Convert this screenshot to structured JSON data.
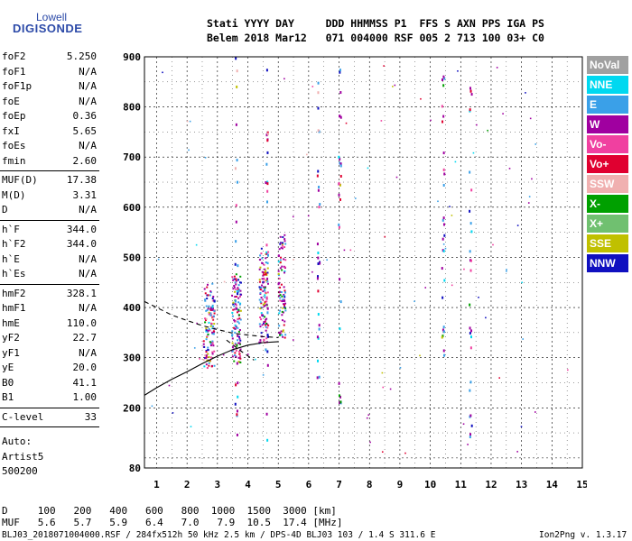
{
  "logo": {
    "top": "Lowell",
    "main": "DIGISONDE"
  },
  "header": {
    "labels": [
      "Stati",
      "YYYY",
      "DAY",
      "DDD",
      "HHMMSS",
      "P1",
      "FFS",
      "S",
      "AXN",
      "PPS",
      "IGA",
      "PS"
    ],
    "values": [
      "Belem",
      "2018",
      "Mar12",
      "071",
      "004000",
      "RSF",
      "005",
      "2",
      "713",
      "100",
      "03+",
      "C0"
    ]
  },
  "params": {
    "group1": [
      {
        "name": "foF2",
        "value": "5.250"
      },
      {
        "name": "foF1",
        "value": "N/A"
      },
      {
        "name": "foF1p",
        "value": "N/A"
      },
      {
        "name": "foE",
        "value": "N/A"
      },
      {
        "name": "foEp",
        "value": "0.36"
      },
      {
        "name": "fxI",
        "value": "5.65"
      },
      {
        "name": "foEs",
        "value": "N/A"
      },
      {
        "name": "fmin",
        "value": "2.60"
      }
    ],
    "group2": [
      {
        "name": "MUF(D)",
        "value": "17.38"
      },
      {
        "name": "M(D)",
        "value": "3.31"
      },
      {
        "name": "D",
        "value": "N/A"
      }
    ],
    "group3": [
      {
        "name": "h`F",
        "value": "344.0"
      },
      {
        "name": "h`F2",
        "value": "344.0"
      },
      {
        "name": "h`E",
        "value": "N/A"
      },
      {
        "name": "h`Es",
        "value": "N/A"
      }
    ],
    "group4": [
      {
        "name": "hmF2",
        "value": "328.1"
      },
      {
        "name": "hmF1",
        "value": "N/A"
      },
      {
        "name": "hmE",
        "value": "110.0"
      },
      {
        "name": "yF2",
        "value": "22.7"
      },
      {
        "name": "yF1",
        "value": "N/A"
      },
      {
        "name": "yE",
        "value": "20.0"
      },
      {
        "name": "B0",
        "value": "41.1"
      },
      {
        "name": "B1",
        "value": "1.00"
      }
    ],
    "group5": [
      {
        "name": "C-level",
        "value": "33"
      }
    ]
  },
  "auto": {
    "line1": "Auto:",
    "line2": "Artist5",
    "line3": "500200"
  },
  "legend": [
    {
      "label": "NoVal",
      "color": "#a0a0a0"
    },
    {
      "label": "NNE",
      "color": "#00d8f0"
    },
    {
      "label": "E",
      "color": "#3aa0e8"
    },
    {
      "label": "W",
      "color": "#a000a0"
    },
    {
      "label": "Vo-",
      "color": "#f040a0"
    },
    {
      "label": "Vo+",
      "color": "#e00030"
    },
    {
      "label": "SSW",
      "color": "#f0b0b0"
    },
    {
      "label": "X-",
      "color": "#00a000"
    },
    {
      "label": "X+",
      "color": "#70c070"
    },
    {
      "label": "SSE",
      "color": "#c0c000"
    },
    {
      "label": "NNW",
      "color": "#1010c0"
    }
  ],
  "mufTable": {
    "row1": "D     100   200   400   600   800  1000  1500  3000 [km]",
    "row2": "MUF   5.6   5.7   5.9   6.4   7.0   7.9  10.5  17.4 [MHz]"
  },
  "footnote": {
    "left": "BLJ03_2018071004000.RSF / 284fx512h 50 kHz 2.5 km / DPS-4D BLJ03 103 / 1.4 S 311.6 E",
    "right": "Ion2Png v. 1.3.17"
  },
  "chart_data": {
    "type": "scatter",
    "title": "",
    "xlabel": "",
    "ylabel": "",
    "xlim": [
      0.6,
      15
    ],
    "ylim": [
      80,
      900
    ],
    "xticks": [
      1,
      2,
      3,
      4,
      5,
      6,
      7,
      8,
      9,
      10,
      11,
      12,
      13,
      14,
      15
    ],
    "yticks": [
      80,
      200,
      300,
      400,
      500,
      600,
      700,
      800,
      900
    ],
    "grid": true,
    "clusters": [
      {
        "x": 2.7,
        "spread": 0.18,
        "ymin": 280,
        "ymax": 450,
        "count": 120
      },
      {
        "x": 3.6,
        "spread": 0.15,
        "ymin": 290,
        "ymax": 470,
        "count": 110
      },
      {
        "x": 4.5,
        "spread": 0.15,
        "ymin": 330,
        "ymax": 520,
        "count": 110
      },
      {
        "x": 5.1,
        "spread": 0.12,
        "ymin": 340,
        "ymax": 550,
        "count": 90
      }
    ],
    "streaks": [
      {
        "x": 3.6,
        "ymin": 100,
        "ymax": 900
      },
      {
        "x": 4.6,
        "ymin": 120,
        "ymax": 880
      },
      {
        "x": 6.3,
        "ymin": 260,
        "ymax": 880
      },
      {
        "x": 7.0,
        "ymin": 120,
        "ymax": 880
      },
      {
        "x": 10.4,
        "ymin": 280,
        "ymax": 880
      },
      {
        "x": 11.3,
        "ymin": 130,
        "ymax": 880
      }
    ],
    "traces": [
      {
        "name": "",
        "style": "solid",
        "points": [
          [
            0.6,
            225
          ],
          [
            1.0,
            240
          ],
          [
            1.5,
            257
          ],
          [
            2.0,
            272
          ],
          [
            2.5,
            288
          ],
          [
            3.0,
            303
          ],
          [
            3.5,
            316
          ],
          [
            4.0,
            325
          ],
          [
            4.5,
            330
          ],
          [
            5.0,
            332
          ]
        ]
      },
      {
        "name": "",
        "style": "dashed",
        "points": [
          [
            0.6,
            412
          ],
          [
            1.0,
            400
          ],
          [
            1.5,
            385
          ],
          [
            2.0,
            374
          ],
          [
            2.5,
            364
          ],
          [
            3.0,
            356
          ],
          [
            3.5,
            349
          ],
          [
            4.0,
            345
          ],
          [
            4.5,
            342
          ],
          [
            5.0,
            340
          ]
        ]
      },
      {
        "name": "",
        "style": "dashed",
        "points": [
          [
            3.3,
            335
          ],
          [
            3.8,
            312
          ],
          [
            4.2,
            295
          ]
        ]
      }
    ]
  }
}
